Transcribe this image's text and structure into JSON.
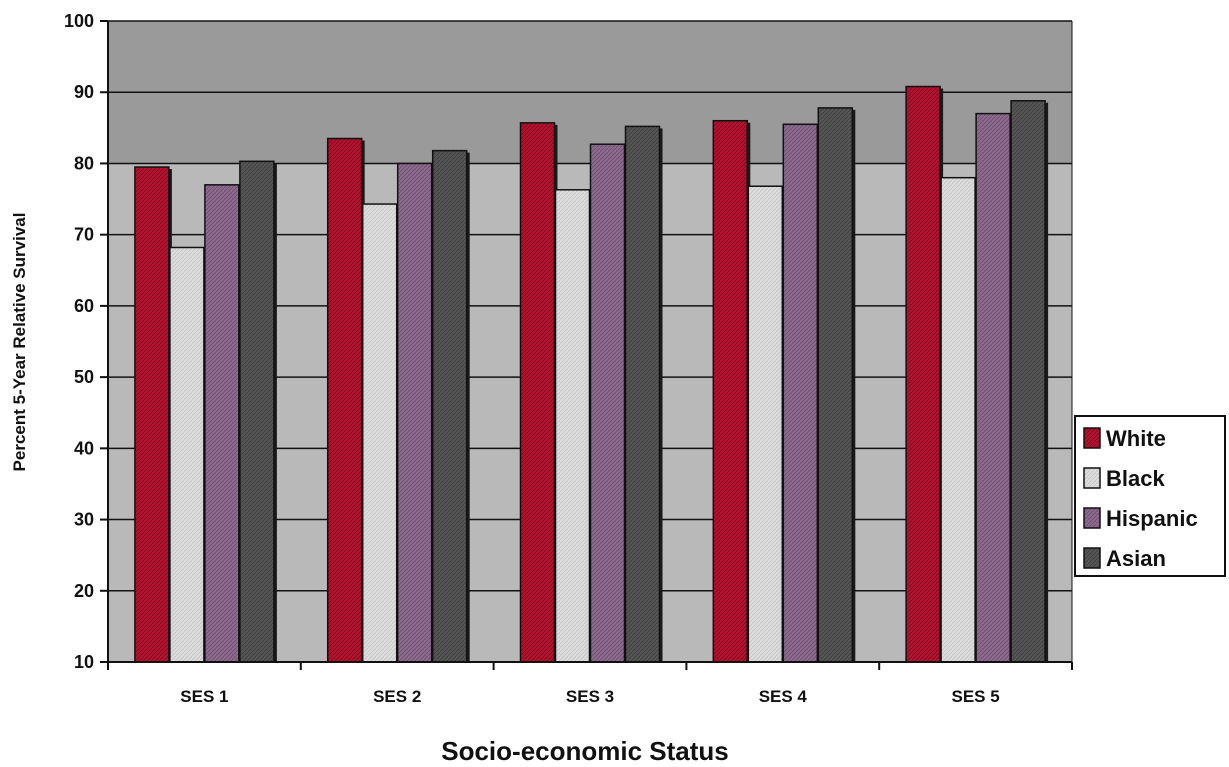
{
  "chart_data": {
    "type": "bar",
    "xlabel": "Socio-economic Status",
    "ylabel": "Percent 5-Year Relative Survival",
    "ylim": [
      10,
      100
    ],
    "yticks": [
      10,
      20,
      30,
      40,
      50,
      60,
      70,
      80,
      90,
      100
    ],
    "grid": true,
    "legend_position": "right",
    "categories": [
      "SES 1",
      "SES 2",
      "SES 3",
      "SES 4",
      "SES 5"
    ],
    "series": [
      {
        "name": "White",
        "color": "#b5112f",
        "values": [
          79.5,
          83.5,
          85.7,
          86,
          90.8
        ]
      },
      {
        "name": "Black",
        "color": "#dcdcdc",
        "values": [
          68.2,
          74.3,
          76.3,
          76.8,
          78
        ]
      },
      {
        "name": "Hispanic",
        "color": "#8c6a8e",
        "values": [
          77,
          80,
          82.7,
          85.5,
          87
        ]
      },
      {
        "name": "Asian",
        "color": "#555555",
        "values": [
          80.3,
          81.8,
          85.2,
          87.8,
          88.8
        ]
      }
    ]
  },
  "colors": {
    "plot_upper": "#9a9a9a",
    "plot_lower": "#b9b9b9"
  }
}
